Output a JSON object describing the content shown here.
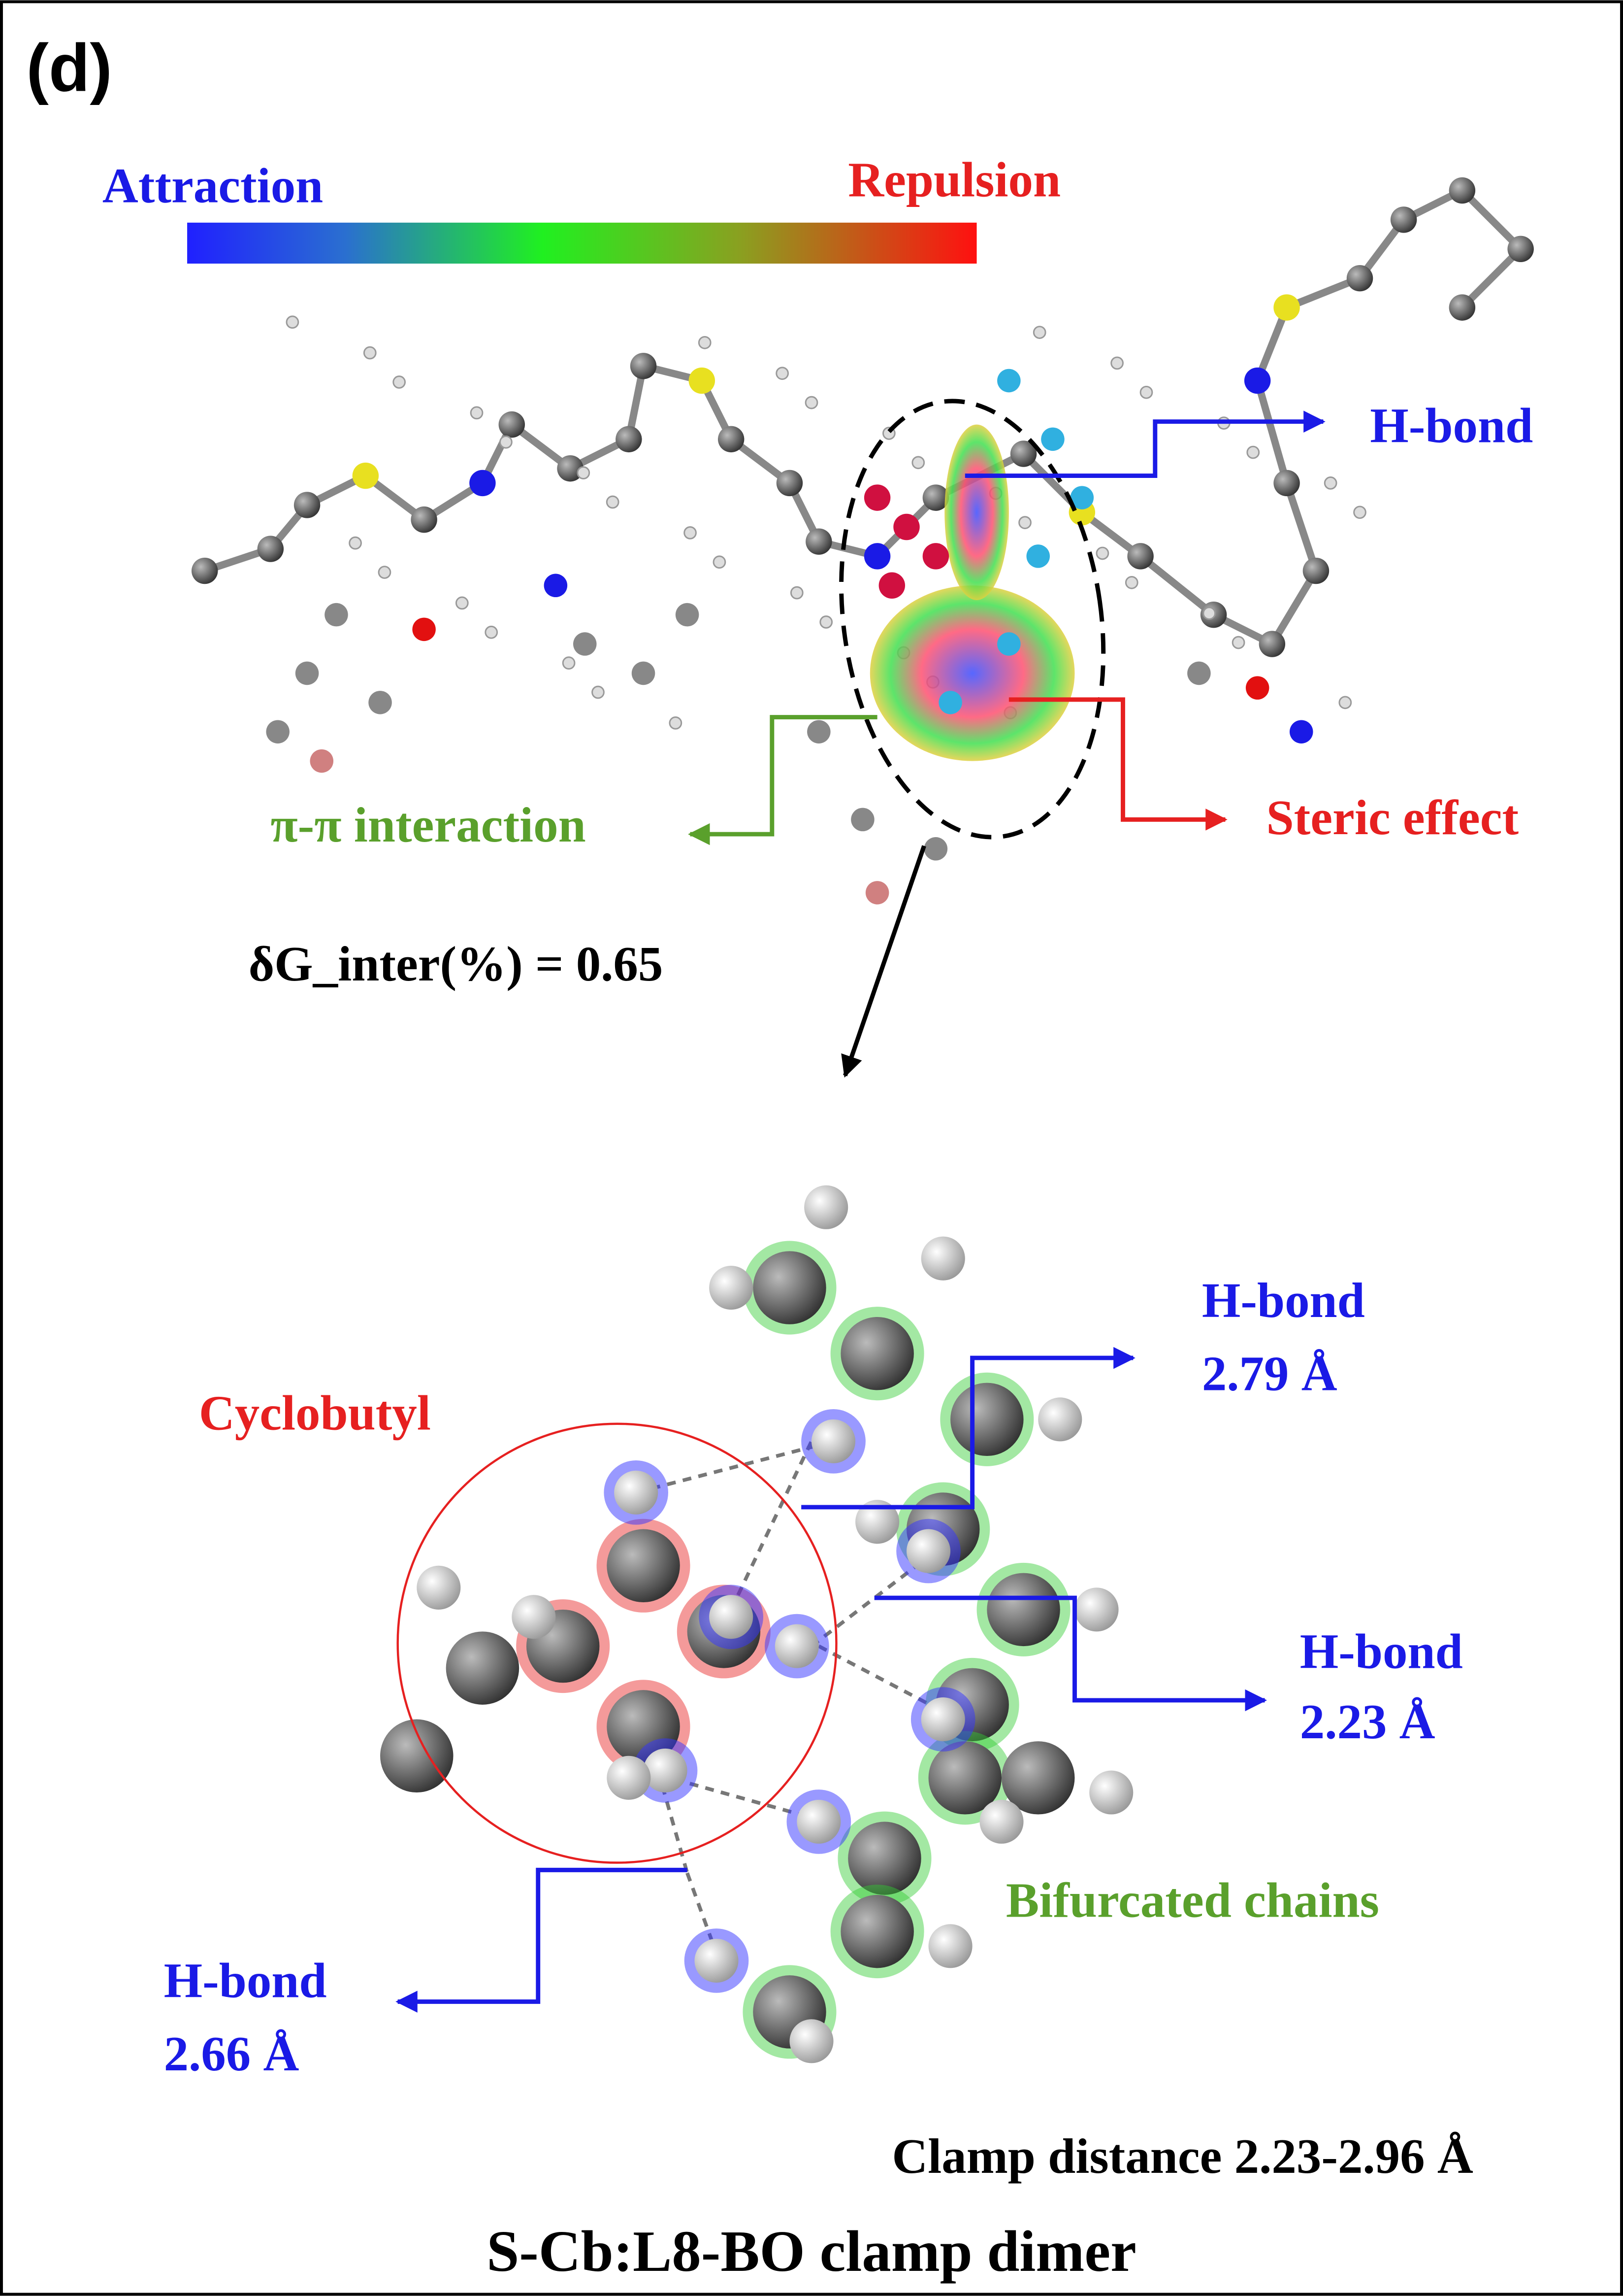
{
  "panel_label": "(d)",
  "colorbar": {
    "left_label": "Attraction",
    "right_label": "Repulsion"
  },
  "overview": {
    "h_bond": "H-bond",
    "pi_pi": "π-π interaction",
    "steric": "Steric effect",
    "delta_g": "δG_inter(%) = 0.65"
  },
  "detail": {
    "cyclobutyl": "Cyclobutyl",
    "h_bonds": [
      {
        "label": "H-bond",
        "distance": "2.79 Å"
      },
      {
        "label": "H-bond",
        "distance": "2.23 Å"
      },
      {
        "label": "H-bond",
        "distance": "2.66 Å"
      }
    ],
    "bifurcated": "Bifurcated chains",
    "clamp_distance": "Clamp distance 2.23-2.96 Å"
  },
  "caption": "S-Cb:L8-BO clamp dimer"
}
